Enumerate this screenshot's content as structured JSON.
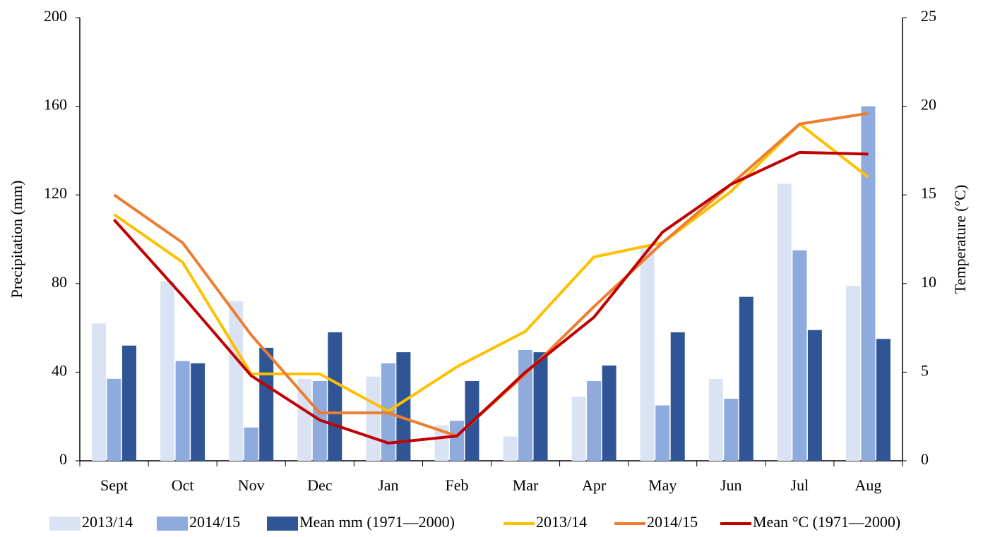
{
  "chart_data": {
    "type": "bar",
    "y_label": "Precipitation (mm)",
    "y2_label": "Temperature (°C)",
    "categories": [
      "Sept",
      "Oct",
      "Nov",
      "Dec",
      "Jan",
      "Feb",
      "Mar",
      "Apr",
      "May",
      "Jun",
      "Jul",
      "Aug"
    ],
    "ylim": [
      0,
      200
    ],
    "yticks": [
      0,
      40,
      80,
      120,
      160,
      200
    ],
    "y2lim": [
      0,
      25
    ],
    "y2ticks": [
      0,
      5,
      10,
      15,
      20,
      25
    ],
    "grid": false,
    "legend": "bottom",
    "series": [
      {
        "name": "2013/14",
        "type": "bar",
        "color": "#dae3f3",
        "values": [
          62,
          81,
          72,
          37,
          38,
          16,
          11,
          29,
          96,
          37,
          125,
          79
        ]
      },
      {
        "name": "2014/15",
        "type": "bar",
        "color": "#8faadc",
        "values": [
          37,
          45,
          15,
          36,
          44,
          18,
          50,
          36,
          25,
          28,
          95,
          160
        ]
      },
      {
        "name": "Mean mm (1971—2000)",
        "type": "bar",
        "color": "#2f5597",
        "values": [
          52,
          44,
          51,
          58,
          49,
          36,
          49,
          43,
          58,
          74,
          59,
          55
        ]
      },
      {
        "name": "2013/14",
        "type": "line",
        "axis": "y2",
        "color": "#ffc000",
        "values": [
          13.9,
          11.2,
          4.9,
          4.9,
          2.8,
          5.3,
          7.3,
          11.5,
          12.3,
          15.2,
          19.0,
          16.0
        ]
      },
      {
        "name": "2014/15",
        "type": "line",
        "axis": "y2",
        "color": "#ed7d31",
        "values": [
          15.0,
          12.3,
          7.1,
          2.7,
          2.7,
          1.4,
          4.9,
          8.7,
          12.3,
          15.6,
          19.0,
          19.6
        ]
      },
      {
        "name": "Mean °C (1971—2000)",
        "type": "line",
        "axis": "y2",
        "color": "#c00000",
        "values": [
          13.6,
          9.3,
          4.8,
          2.3,
          1.0,
          1.4,
          5.0,
          8.1,
          12.9,
          15.6,
          17.4,
          17.3
        ]
      }
    ]
  }
}
